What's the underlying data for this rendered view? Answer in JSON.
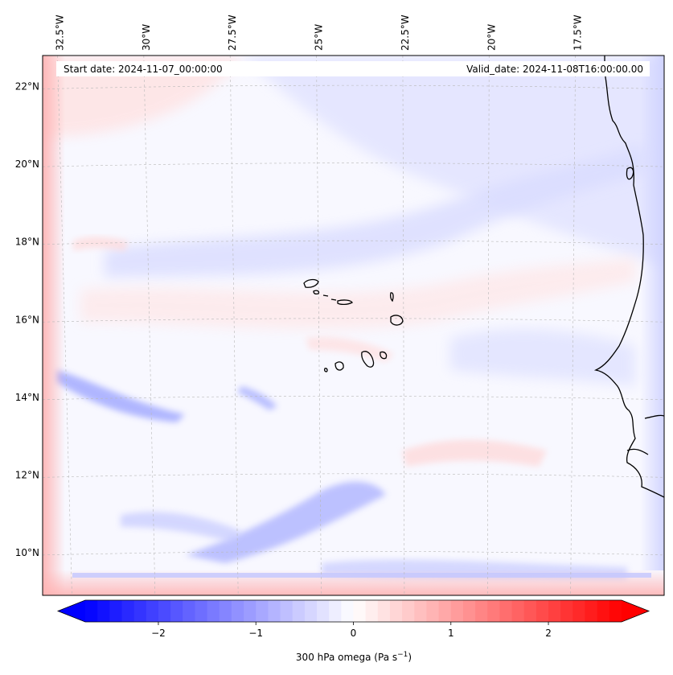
{
  "figure": {
    "start_date_label": "Start date: 2024-11-07_00:00:00",
    "valid_date_label": "Valid_date: 2024-11-08T16:00:00.00"
  },
  "map": {
    "longitude_labels": [
      {
        "value": -32.5,
        "label": "32.5°W"
      },
      {
        "value": -30.0,
        "label": "30°W"
      },
      {
        "value": -27.5,
        "label": "27.5°W"
      },
      {
        "value": -25.0,
        "label": "25°W"
      },
      {
        "value": -22.5,
        "label": "22.5°W"
      },
      {
        "value": -20.0,
        "label": "20°W"
      },
      {
        "value": -17.5,
        "label": "17.5°W"
      }
    ],
    "latitude_labels": [
      {
        "value": 22,
        "label": "22°N"
      },
      {
        "value": 20,
        "label": "20°N"
      },
      {
        "value": 18,
        "label": "18°N"
      },
      {
        "value": 16,
        "label": "16°N"
      },
      {
        "value": 14,
        "label": "14°N"
      },
      {
        "value": 12,
        "label": "12°N"
      },
      {
        "value": 10,
        "label": "10°N"
      }
    ],
    "lon_range": [
      -33.0,
      -15.0
    ],
    "lat_range": [
      8.9,
      22.8
    ],
    "gridlines": true,
    "coastline_color": "#000000"
  },
  "colorbar": {
    "label": "300 hPa omega (Pa s",
    "label_sup": "−1",
    "label_end": ")",
    "range": [
      -2.75,
      2.75
    ],
    "ticks": [
      {
        "value": -2,
        "label": "−2"
      },
      {
        "value": -1,
        "label": "−1"
      },
      {
        "value": 0,
        "label": "0"
      },
      {
        "value": 1,
        "label": "1"
      },
      {
        "value": 2,
        "label": "2"
      }
    ],
    "color_min": "#0000ff",
    "color_mid": "#ffffff",
    "color_max": "#ff0000"
  }
}
